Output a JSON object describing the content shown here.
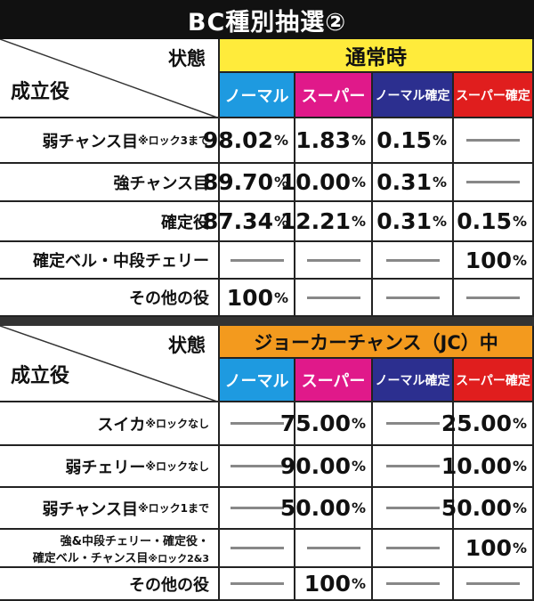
{
  "title": "BC種別抽選②",
  "colors": {
    "normal": "#1e9ae0",
    "super": "#e0198a",
    "normal_confirm": "#2c2f8f",
    "super_confirm": "#e01e1e",
    "state1": "#ffeb3b",
    "state2": "#f39a1e"
  },
  "table1": {
    "state_label": "状態",
    "role_label": "成立役",
    "state_name": "通常時",
    "tags": [
      "ノーマル",
      "スーパー",
      "ノーマル確定",
      "スーパー確定"
    ],
    "rows": [
      {
        "role": "弱チャンス目",
        "note": "※ロック3まで",
        "values": [
          "98.02",
          "1.83",
          "0.15",
          null
        ]
      },
      {
        "role": "強チャンス目",
        "note": "",
        "values": [
          "89.70",
          "10.00",
          "0.31",
          null
        ]
      },
      {
        "role": "確定役",
        "note": "",
        "values": [
          "87.34",
          "12.21",
          "0.31",
          "0.15"
        ]
      },
      {
        "role": "確定ベル・中段チェリー",
        "note": "",
        "values": [
          null,
          null,
          null,
          "100"
        ]
      },
      {
        "role": "その他の役",
        "note": "",
        "values": [
          "100",
          null,
          null,
          null
        ]
      }
    ]
  },
  "table2": {
    "state_label": "状態",
    "role_label": "成立役",
    "state_name": "ジョーカーチャンス（JC）中",
    "tags": [
      "ノーマル",
      "スーパー",
      "ノーマル確定",
      "スーパー確定"
    ],
    "rows": [
      {
        "role": "スイカ",
        "note": "※ロックなし",
        "values": [
          null,
          "75.00",
          null,
          "25.00"
        ]
      },
      {
        "role": "弱チェリー",
        "note": "※ロックなし",
        "values": [
          null,
          "90.00",
          null,
          "10.00"
        ]
      },
      {
        "role": "弱チャンス目",
        "note": "※ロック1まで",
        "values": [
          null,
          "50.00",
          null,
          "50.00"
        ]
      },
      {
        "role": "強&中段チェリー・確定役・",
        "role2": "確定ベル・チャンス目",
        "note": "※ロック2&3",
        "values": [
          null,
          null,
          null,
          "100"
        ]
      },
      {
        "role": "その他の役",
        "note": "",
        "values": [
          null,
          "100",
          null,
          null
        ]
      }
    ]
  },
  "pct": "%"
}
